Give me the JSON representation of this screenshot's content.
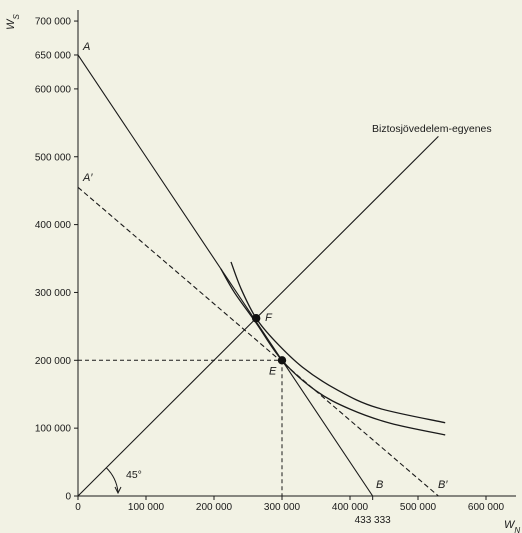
{
  "chart_data": {
    "type": "line",
    "title": "",
    "xlabel": "W_N",
    "ylabel": "W_S",
    "xlim": [
      0,
      650000
    ],
    "ylim": [
      0,
      720000
    ],
    "x_ticks": [
      {
        "v": 0,
        "label": "0"
      },
      {
        "v": 100000,
        "label": "100 000"
      },
      {
        "v": 200000,
        "label": "200 000"
      },
      {
        "v": 300000,
        "label": "300 000"
      },
      {
        "v": 400000,
        "label": "400 000"
      },
      {
        "v": 500000,
        "label": "500 000"
      },
      {
        "v": 600000,
        "label": "600 000"
      }
    ],
    "y_ticks": [
      {
        "v": 0,
        "label": "0"
      },
      {
        "v": 100000,
        "label": "100 000"
      },
      {
        "v": 200000,
        "label": "200 000"
      },
      {
        "v": 300000,
        "label": "300 000"
      },
      {
        "v": 400000,
        "label": "400 000"
      },
      {
        "v": 500000,
        "label": "500 000"
      },
      {
        "v": 600000,
        "label": "600 000"
      },
      {
        "v": 650000,
        "label": "650 000"
      },
      {
        "v": 700000,
        "label": "700 000"
      }
    ],
    "extra_x_label": {
      "v": 433333,
      "label": "433 333"
    },
    "certainty_line": {
      "label": "Biztosjövedelem-egyenes",
      "x": [
        0,
        530000
      ],
      "y": [
        0,
        530000
      ]
    },
    "budget_line_AB": {
      "start_label": "A",
      "end_label": "B",
      "x": [
        0,
        433333
      ],
      "y": [
        650000,
        0
      ]
    },
    "budget_line_A1B1": {
      "start_label": "A′",
      "end_label": "B′",
      "x": [
        0,
        530000
      ],
      "y": [
        455000,
        0
      ]
    },
    "curve_upper": {
      "x": [
        225000,
        240000,
        262000,
        290000,
        330000,
        380000,
        440000,
        540000
      ],
      "y": [
        345000,
        305000,
        262000,
        228000,
        190000,
        157000,
        130000,
        108000
      ]
    },
    "curve_lower": {
      "x": [
        210000,
        230000,
        262000,
        300000,
        350000,
        400000,
        460000,
        540000
      ],
      "y": [
        335000,
        300000,
        255000,
        200000,
        155000,
        128000,
        107000,
        90000
      ]
    },
    "points": [
      {
        "label": "F",
        "x": 262000,
        "y": 262000
      },
      {
        "label": "E",
        "x": 300000,
        "y": 200000
      }
    ],
    "angle_label": "45°"
  }
}
